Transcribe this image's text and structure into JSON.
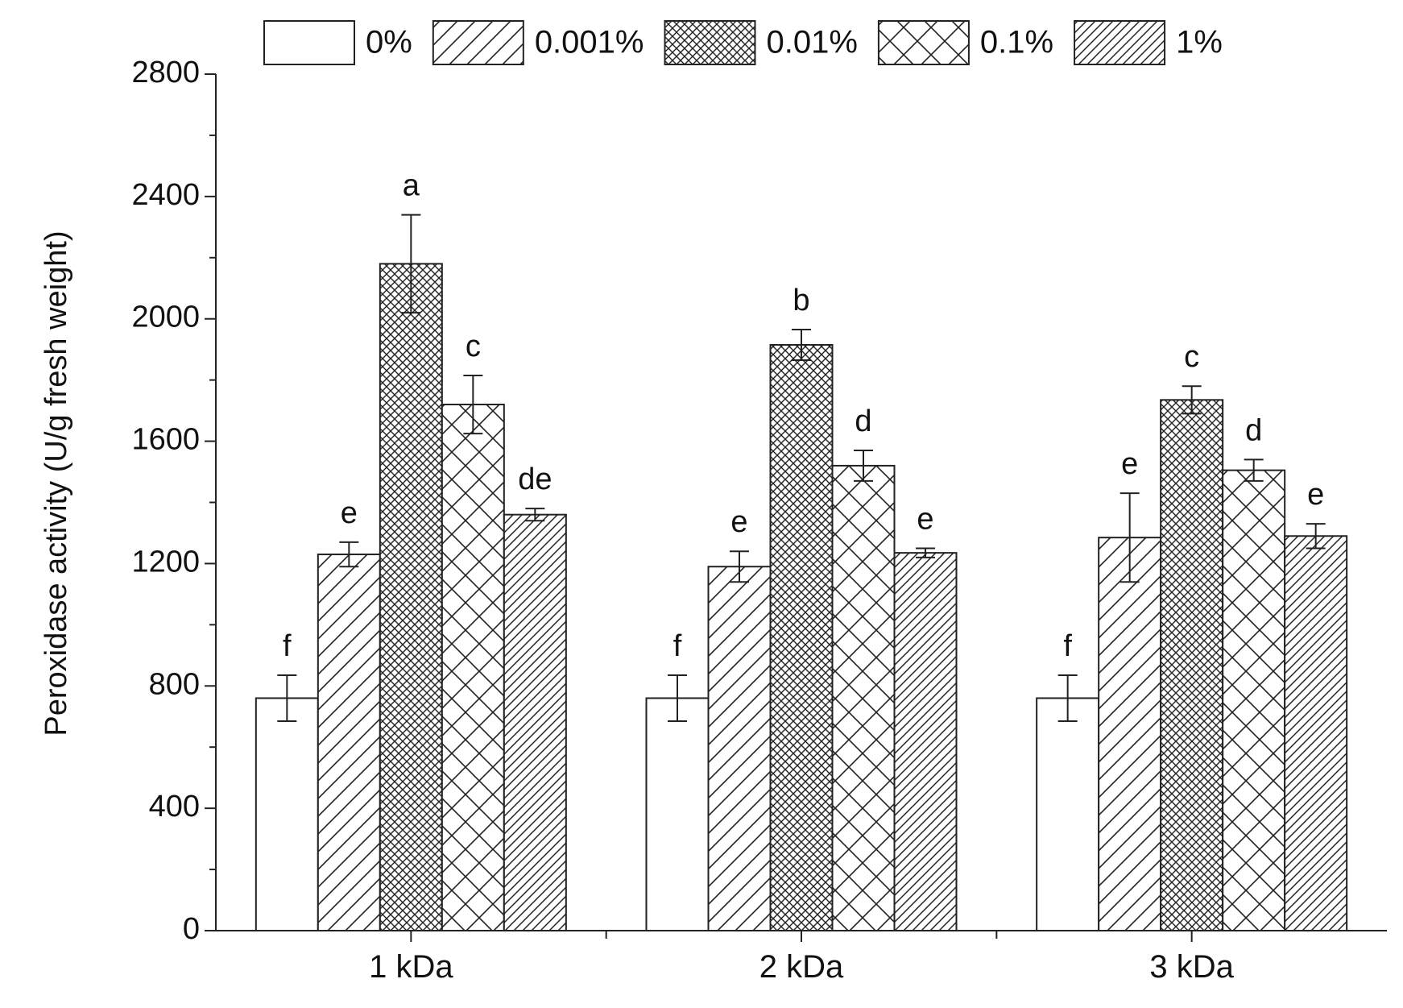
{
  "chart_data": {
    "type": "bar",
    "title": "",
    "xlabel": "",
    "ylabel": "Peroxidase activity (U/g fresh weight)",
    "ylim": [
      0,
      2800
    ],
    "yticks": [
      0,
      400,
      800,
      1200,
      1600,
      2000,
      2400,
      2800
    ],
    "ytick_labels": [
      "0",
      "400",
      "800",
      "1200",
      "1600",
      "2000",
      "2400",
      "2800"
    ],
    "categories": [
      "1 kDa",
      "2 kDa",
      "3 kDa"
    ],
    "legend_position": "top",
    "series": [
      {
        "name": "0%",
        "pattern": "none",
        "values": [
          760,
          760,
          760
        ],
        "errors": [
          75,
          75,
          75
        ],
        "labels": [
          "f",
          "f",
          "f"
        ]
      },
      {
        "name": "0.001%",
        "pattern": "sparse-diagonal",
        "values": [
          1230,
          1190,
          1285
        ],
        "errors": [
          40,
          50,
          145
        ],
        "labels": [
          "e",
          "e",
          "e"
        ]
      },
      {
        "name": "0.01%",
        "pattern": "dense-crosshatch",
        "values": [
          2180,
          1915,
          1735
        ],
        "errors": [
          160,
          50,
          45
        ],
        "labels": [
          "a",
          "b",
          "c"
        ]
      },
      {
        "name": "0.1%",
        "pattern": "diamond-crosshatch",
        "values": [
          1720,
          1520,
          1505
        ],
        "errors": [
          95,
          50,
          35
        ],
        "labels": [
          "c",
          "d",
          "d"
        ]
      },
      {
        "name": "1%",
        "pattern": "dense-diagonal",
        "values": [
          1360,
          1235,
          1290
        ],
        "errors": [
          20,
          15,
          40
        ],
        "labels": [
          "de",
          "e",
          "e"
        ]
      }
    ]
  }
}
